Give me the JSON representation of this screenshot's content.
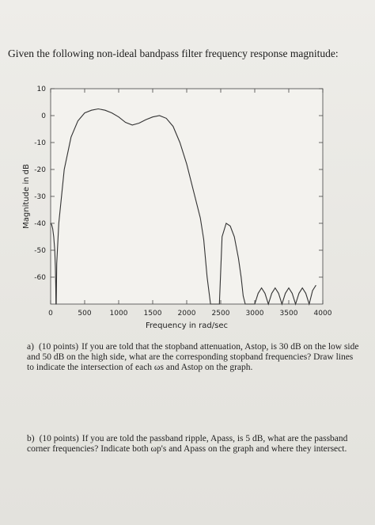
{
  "question": {
    "title": "Given the following non-ideal bandpass filter frequency response magnitude:"
  },
  "chart_data": {
    "type": "line",
    "title": "",
    "xlabel": "Frequency in rad/sec",
    "ylabel": "Magnitude in dB",
    "xlim": [
      0,
      4000
    ],
    "ylim": [
      -70,
      10
    ],
    "xticks": [
      "0",
      "500",
      "1000",
      "1500",
      "2000",
      "2500",
      "3000",
      "3500",
      "4000"
    ],
    "yticks": [
      "10",
      "0",
      "-10",
      "-20",
      "-30",
      "-40",
      "-50",
      "-60"
    ],
    "grid": false,
    "legend": "none",
    "line_color": "#333333",
    "series": [
      {
        "x": [
          0,
          15,
          30,
          45,
          60,
          70,
          75,
          78,
          82,
          90,
          120,
          200,
          300,
          400,
          500,
          600,
          700,
          800,
          900,
          1000,
          1100,
          1200,
          1300,
          1400,
          1500,
          1600,
          1700,
          1800,
          1900,
          2000,
          2100,
          2200,
          2250,
          2300,
          2350,
          2380,
          2420,
          2440,
          2450,
          2460,
          2480,
          2520,
          2580,
          2640,
          2700,
          2760,
          2800,
          2830,
          2860,
          2880,
          2920,
          2950,
          2980,
          3000,
          3050,
          3100,
          3150,
          3200,
          3250,
          3300,
          3350,
          3400,
          3450,
          3500,
          3550,
          3600,
          3650,
          3700,
          3750,
          3800,
          3850,
          3900
        ],
        "y": [
          -40,
          -40.5,
          -42,
          -45,
          -50,
          -56,
          -64,
          -70,
          -70,
          -55,
          -40,
          -20,
          -8,
          -2,
          1,
          2,
          2.5,
          2,
          1,
          -0.5,
          -2.5,
          -3.5,
          -2.8,
          -1.5,
          -0.5,
          0,
          -1,
          -4,
          -10,
          -18,
          -28,
          -38,
          -46,
          -60,
          -70,
          -70,
          -70,
          -70,
          -70,
          -70,
          -70,
          -45,
          -40,
          -41,
          -45,
          -53,
          -60,
          -67,
          -70,
          -70,
          -70,
          -70,
          -70,
          -70,
          -66,
          -64,
          -66,
          -70,
          -66,
          -64,
          -66,
          -70,
          -66,
          -64,
          -66,
          -70,
          -66,
          -64,
          -66,
          -70,
          -65,
          -63
        ]
      }
    ]
  },
  "parts": {
    "a": {
      "label": "a)",
      "points": "(10 points)",
      "text": "If you are told that the stopband attenuation, Astop, is 30 dB on the low side and 50 dB on the high side, what are the corresponding stopband frequencies? Draw lines to indicate the intersection of each ωs and Astop on the graph."
    },
    "b": {
      "label": "b)",
      "points": "(10 points)",
      "text": "If you are told the passband ripple, Apass, is 5 dB, what are the passband corner frequencies? Indicate both ωp's and Apass on the graph and where they intersect."
    }
  }
}
